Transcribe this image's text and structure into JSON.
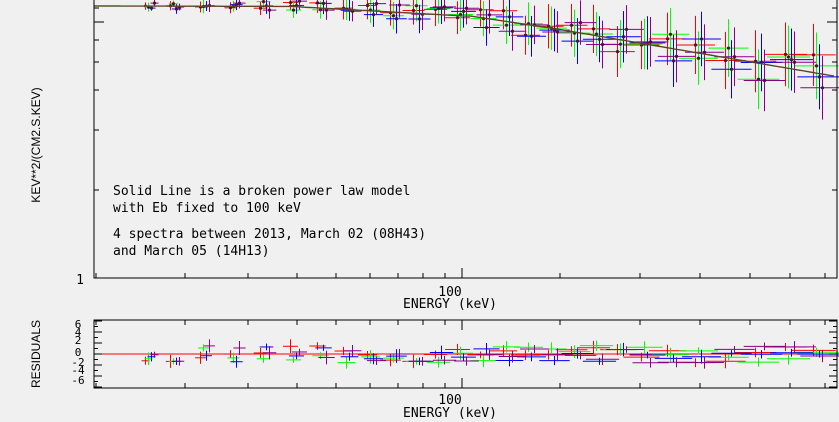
{
  "colors": {
    "background": "#f0f0f0",
    "axes": "#000000",
    "model_line": "#2e7d2e",
    "model_line_overlay": "#7a2a2a",
    "series": [
      "#ff0000",
      "#00ff00",
      "#0000ff",
      "#880088"
    ]
  },
  "chart_data": [
    {
      "type": "scatter",
      "panel": "spectrum",
      "ylabel": "KEV**2/(CM2.S.KEV)",
      "xlabel": "ENERGY (keV)",
      "xscale": "log",
      "yscale": "log",
      "x_tick_labels": [
        "100"
      ],
      "y_tick_labels": [
        "1"
      ],
      "annotation_lines": [
        "Solid Line is a broken power law model",
        "with Eb fixed to 100 keV",
        "4 spectra between 2013, March 02 (08H43)",
        "and March 05 (14H13)"
      ],
      "legend": "none",
      "model": {
        "type": "broken power law"
      }
    },
    {
      "type": "scatter",
      "panel": "residuals",
      "ylabel": "RESIDUALS",
      "xlabel": "ENERGY (keV)",
      "xscale": "log",
      "x_tick_labels": [
        "100"
      ],
      "y_tick_labels": [
        "6",
        "4",
        "2",
        "0",
        "-2",
        "-4",
        "-6"
      ],
      "ylim": [
        -6,
        6
      ]
    }
  ]
}
